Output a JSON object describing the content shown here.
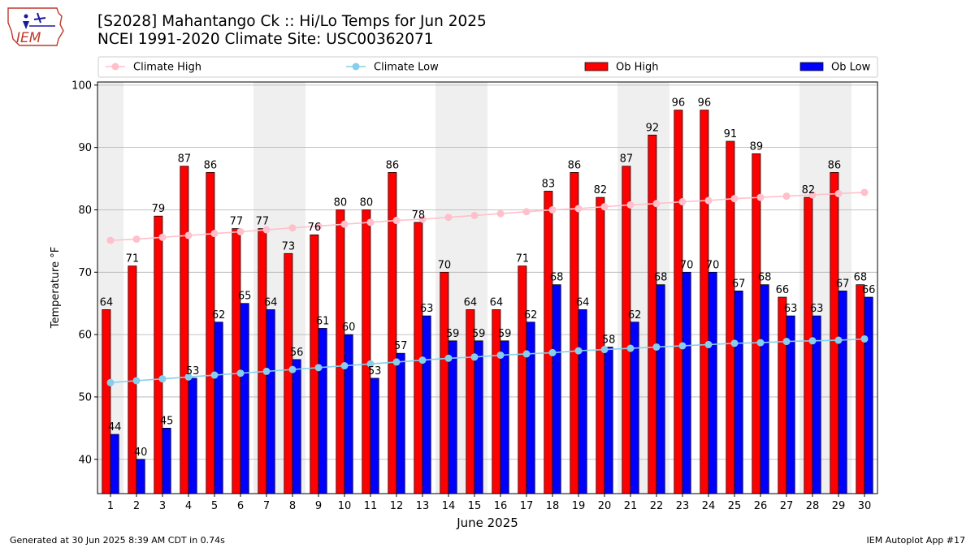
{
  "page": {
    "logo_text": "IEM",
    "title_line1": "[S2028] Mahantango Ck :: Hi/Lo Temps for Jun 2025",
    "title_line2": "NCEI 1991-2020 Climate Site: USC00362071",
    "footer_left": "Generated at 30 Jun 2025 8:39 AM CDT in 0.74s",
    "footer_right": "IEM Autoplot App #17"
  },
  "chart_data": {
    "type": "bar",
    "title": "[S2028] Mahantango Ck :: Hi/Lo Temps for Jun 2025",
    "subtitle": "NCEI 1991-2020 Climate Site: USC00362071",
    "xlabel": "June 2025",
    "ylabel": "Temperature °F",
    "ylim": [
      34.5,
      100.5
    ],
    "xlim": [
      0.5,
      30.5
    ],
    "yticks": [
      40,
      50,
      60,
      70,
      80,
      90,
      100
    ],
    "grid": "horizontal",
    "legend_position": "top",
    "categories": [
      1,
      2,
      3,
      4,
      5,
      6,
      7,
      8,
      9,
      10,
      11,
      12,
      13,
      14,
      15,
      16,
      17,
      18,
      19,
      20,
      21,
      22,
      23,
      24,
      25,
      26,
      27,
      28,
      29,
      30
    ],
    "weekend_days": [
      1,
      7,
      8,
      14,
      15,
      21,
      22,
      28,
      29
    ],
    "series": [
      {
        "name": "Ob High",
        "kind": "bar",
        "color": "#ff0000",
        "values": [
          64,
          71,
          79,
          87,
          86,
          77,
          77,
          73,
          76,
          80,
          80,
          86,
          78,
          70,
          64,
          64,
          71,
          83,
          86,
          82,
          87,
          92,
          96,
          96,
          91,
          89,
          66,
          82,
          86,
          68
        ]
      },
      {
        "name": "Ob Low",
        "kind": "bar",
        "color": "#0000ff",
        "values": [
          44,
          40,
          45,
          53,
          62,
          65,
          64,
          56,
          61,
          60,
          53,
          57,
          63,
          59,
          59,
          59,
          62,
          68,
          64,
          58,
          62,
          68,
          70,
          70,
          67,
          68,
          63,
          63,
          67,
          66
        ]
      },
      {
        "name": "Climate High",
        "kind": "line",
        "color": "#ffc0cb",
        "values": [
          75.1,
          75.3,
          75.6,
          75.9,
          76.2,
          76.5,
          76.8,
          77.1,
          77.4,
          77.7,
          78.0,
          78.3,
          78.5,
          78.8,
          79.1,
          79.4,
          79.7,
          80.0,
          80.2,
          80.5,
          80.8,
          81.0,
          81.3,
          81.5,
          81.8,
          82.0,
          82.2,
          82.4,
          82.6,
          82.8
        ]
      },
      {
        "name": "Climate Low",
        "kind": "line",
        "color": "#87ceeb",
        "values": [
          52.3,
          52.6,
          52.9,
          53.2,
          53.5,
          53.8,
          54.1,
          54.4,
          54.7,
          55.0,
          55.3,
          55.6,
          55.9,
          56.2,
          56.4,
          56.7,
          56.9,
          57.1,
          57.4,
          57.6,
          57.8,
          58.0,
          58.2,
          58.4,
          58.6,
          58.7,
          58.9,
          59.0,
          59.1,
          59.3
        ]
      }
    ]
  }
}
